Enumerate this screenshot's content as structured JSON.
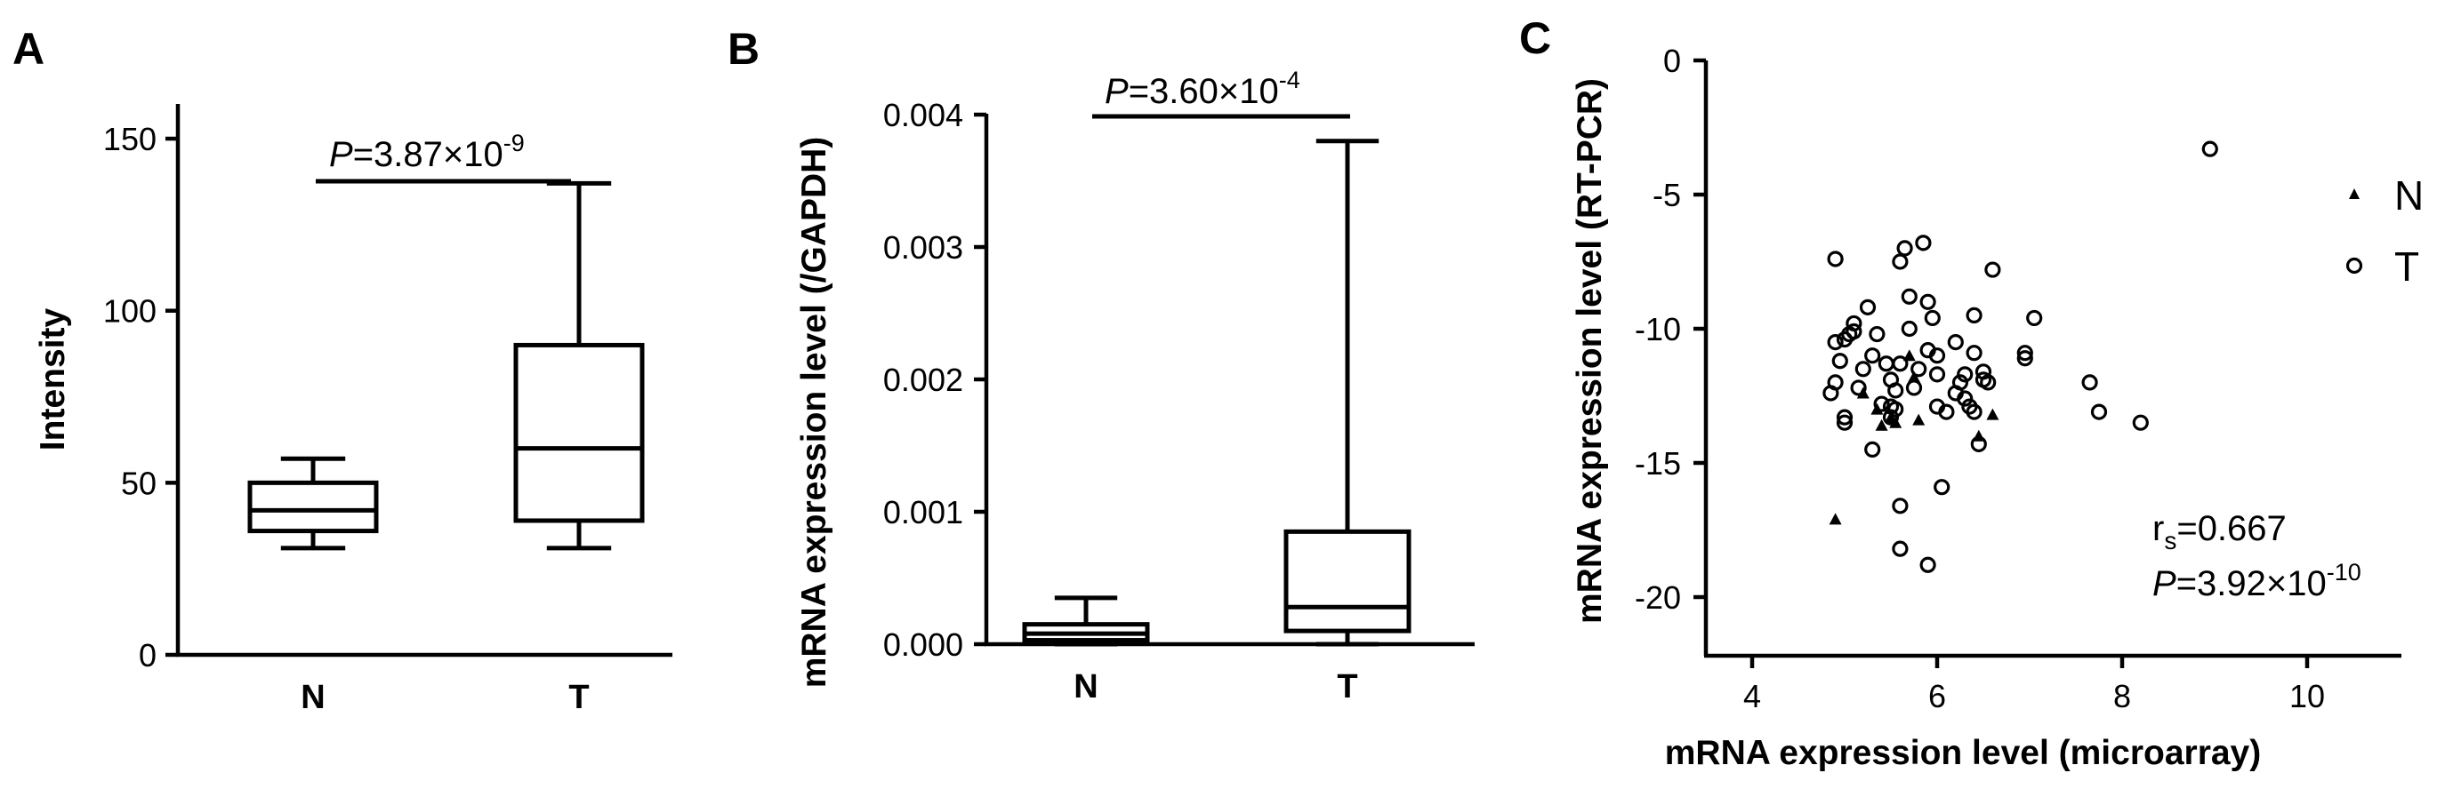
{
  "panels": {
    "a": {
      "letter": "A",
      "ylabel": "Intensity",
      "ticks": [
        "0",
        "50",
        "100",
        "150"
      ],
      "categories": [
        "N",
        "T"
      ],
      "p_prefix": "P",
      "p_value": "=3.87×10",
      "p_exp": "-9"
    },
    "b": {
      "letter": "B",
      "ylabel": "mRNA expression level (/GAPDH)",
      "ticks": [
        "0.000",
        "0.001",
        "0.002",
        "0.003",
        "0.004"
      ],
      "categories": [
        "N",
        "T"
      ],
      "p_prefix": "P",
      "p_value": "=3.60×10",
      "p_exp": "-4"
    },
    "c": {
      "letter": "C",
      "xlabel": "mRNA expression level (microarray)",
      "ylabel": "mRNA expression level (RT-PCR)",
      "xticks": [
        "4",
        "6",
        "8",
        "10"
      ],
      "yticks": [
        "0",
        "-5",
        "-10",
        "-15",
        "-20"
      ],
      "legend": [
        "N",
        "T"
      ],
      "rs_prefix": "r",
      "rs_sub": "s",
      "rs_value": "=0.667",
      "p_prefix": "P",
      "p_value": "=3.92×10",
      "p_exp": "-10"
    }
  },
  "chart_data": [
    {
      "type": "box",
      "ylabel": "Intensity",
      "ylim": [
        0,
        180
      ],
      "categories": [
        "N",
        "T"
      ],
      "boxes": [
        {
          "category": "N",
          "min": 31,
          "q1": 36,
          "median": 42,
          "q3": 50,
          "max": 57
        },
        {
          "category": "T",
          "min": 31,
          "q1": 39,
          "median": 60,
          "q3": 90,
          "max": 137
        }
      ],
      "annotation": "P=3.87×10^-9"
    },
    {
      "type": "box",
      "ylabel": "mRNA expression level (/GAPDH)",
      "ylim": [
        0,
        0.004
      ],
      "categories": [
        "N",
        "T"
      ],
      "boxes": [
        {
          "category": "N",
          "min": 0.0,
          "q1": 3e-05,
          "median": 8e-05,
          "q3": 0.00015,
          "max": 0.00035
        },
        {
          "category": "T",
          "min": 0.0,
          "q1": 0.0001,
          "median": 0.00028,
          "q3": 0.00085,
          "max": 0.0038
        }
      ],
      "annotation": "P=3.60×10^-4"
    },
    {
      "type": "scatter",
      "xlabel": "mRNA expression level (microarray)",
      "ylabel": "mRNA expression level (RT-PCR)",
      "xlim": [
        3.5,
        10.5
      ],
      "ylim": [
        -22,
        0
      ],
      "series": [
        {
          "name": "N",
          "marker": "triangle",
          "x": [
            5.2,
            5.35,
            5.4,
            5.5,
            5.55,
            5.7,
            5.75,
            5.8,
            6.45,
            6.6,
            4.9
          ],
          "y": [
            -12.4,
            -13.0,
            -13.6,
            -13.3,
            -13.5,
            -11.0,
            -11.8,
            -13.4,
            -14.0,
            -13.2,
            -17.1
          ]
        },
        {
          "name": "T",
          "x": [
            4.9,
            4.85,
            4.95,
            4.9,
            5.0,
            5.05,
            5.1,
            5.15,
            5.2,
            5.25,
            5.3,
            5.35,
            5.4,
            5.45,
            5.5,
            5.5,
            5.55,
            5.6,
            5.6,
            5.65,
            5.7,
            5.75,
            5.8,
            5.85,
            5.9,
            5.95,
            6.0,
            6.05,
            6.1,
            6.2,
            6.25,
            6.3,
            6.35,
            6.4,
            6.45,
            6.5,
            6.55,
            6.6,
            6.95,
            7.05,
            7.65,
            7.75,
            8.2,
            8.95,
            4.9,
            5.0,
            5.0,
            5.1,
            5.3,
            5.5,
            5.6,
            5.9,
            6.0,
            6.3,
            6.4,
            6.2,
            5.55,
            5.6,
            5.9,
            5.7,
            6.0,
            6.5,
            6.4,
            6.95
          ],
          "y": [
            -7.4,
            -12.4,
            -11.2,
            -10.5,
            -13.5,
            -10.2,
            -9.8,
            -12.2,
            -11.5,
            -9.2,
            -11.0,
            -10.2,
            -12.8,
            -11.3,
            -12.9,
            -13.3,
            -12.3,
            -7.5,
            -16.6,
            -7.0,
            -8.8,
            -12.2,
            -11.5,
            -6.8,
            -9.0,
            -9.6,
            -11.7,
            -15.9,
            -13.1,
            -10.5,
            -12.0,
            -11.7,
            -12.9,
            -9.5,
            -14.3,
            -11.6,
            -12.0,
            -7.8,
            -11.1,
            -9.6,
            -12.0,
            -13.1,
            -13.5,
            -3.3,
            -12.0,
            -10.4,
            -13.3,
            -10.1,
            -14.5,
            -11.9,
            -18.2,
            -18.8,
            -11.0,
            -12.6,
            -13.1,
            -12.4,
            -13.0,
            -11.3,
            -10.8,
            -10.0,
            -12.9,
            -11.9,
            -10.9,
            -10.9
          ]
        }
      ],
      "annotations": [
        "rs=0.667",
        "P=3.92×10^-10"
      ]
    }
  ]
}
